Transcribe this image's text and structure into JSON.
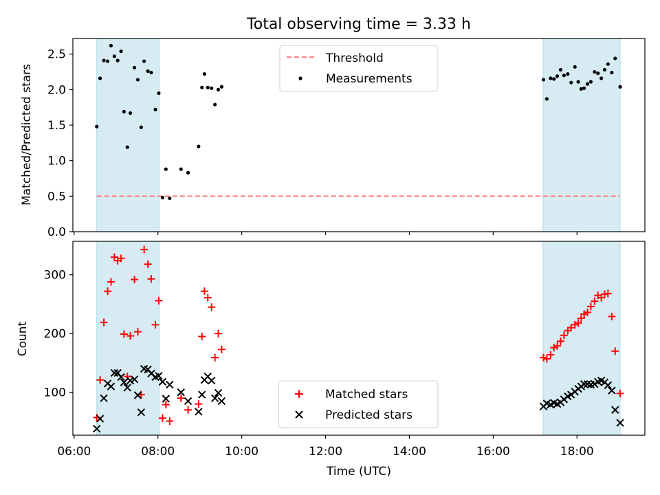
{
  "figure": {
    "title": "Total observing time = 3.33 h",
    "xlabel": "Time (UTC)",
    "xticks": [
      "06:00",
      "08:00",
      "10:00",
      "12:00",
      "14:00",
      "16:00",
      "18:00"
    ],
    "colors": {
      "shade": "#add8e6",
      "threshold": "#ff7f7f",
      "measurement": "#000000",
      "matched": "#ff0000",
      "predicted": "#000000"
    }
  },
  "chart_data": [
    {
      "type": "scatter",
      "panel": "top",
      "ylabel": "Matched/Predicted stars",
      "xlim": [
        5.97,
        19.62
      ],
      "ylim": [
        0,
        2.72
      ],
      "yticks": [
        "0.0",
        "0.5",
        "1.0",
        "1.5",
        "2.0",
        "2.5"
      ],
      "shaded_intervals": [
        [
          6.54,
          8.03
        ],
        [
          17.19,
          19.03
        ]
      ],
      "threshold": {
        "name": "Threshold",
        "value": 0.5,
        "x_range": [
          6.54,
          19.03
        ],
        "style": "dashed"
      },
      "legend": {
        "position": "top-center",
        "entries": [
          "Threshold",
          "Measurements"
        ]
      },
      "series": [
        {
          "name": "Measurements",
          "points": [
            [
              6.54,
              1.48
            ],
            [
              6.62,
              2.16
            ],
            [
              6.71,
              2.41
            ],
            [
              6.8,
              2.4
            ],
            [
              6.88,
              2.62
            ],
            [
              6.96,
              2.47
            ],
            [
              7.04,
              2.41
            ],
            [
              7.12,
              2.54
            ],
            [
              7.19,
              1.69
            ],
            [
              7.27,
              1.19
            ],
            [
              7.34,
              1.67
            ],
            [
              7.44,
              2.31
            ],
            [
              7.52,
              2.14
            ],
            [
              7.6,
              1.47
            ],
            [
              7.67,
              2.4
            ],
            [
              7.76,
              2.26
            ],
            [
              7.84,
              2.24
            ],
            [
              7.94,
              1.72
            ],
            [
              8.02,
              1.95
            ],
            [
              8.11,
              0.48
            ],
            [
              8.19,
              0.88
            ],
            [
              8.28,
              0.47
            ],
            [
              8.55,
              0.88
            ],
            [
              8.72,
              0.83
            ],
            [
              8.97,
              1.2
            ],
            [
              9.05,
              2.03
            ],
            [
              9.11,
              2.22
            ],
            [
              9.19,
              2.03
            ],
            [
              9.28,
              2.02
            ],
            [
              9.36,
              1.79
            ],
            [
              9.44,
              2.0
            ],
            [
              9.52,
              2.04
            ],
            [
              17.2,
              2.14
            ],
            [
              17.28,
              1.87
            ],
            [
              17.37,
              2.16
            ],
            [
              17.45,
              2.15
            ],
            [
              17.53,
              2.19
            ],
            [
              17.61,
              2.28
            ],
            [
              17.69,
              2.2
            ],
            [
              17.78,
              2.22
            ],
            [
              17.86,
              2.1
            ],
            [
              17.95,
              2.32
            ],
            [
              18.03,
              2.11
            ],
            [
              18.1,
              2.01
            ],
            [
              18.17,
              2.02
            ],
            [
              18.25,
              2.08
            ],
            [
              18.33,
              2.11
            ],
            [
              18.42,
              2.25
            ],
            [
              18.5,
              2.23
            ],
            [
              18.58,
              2.16
            ],
            [
              18.66,
              2.28
            ],
            [
              18.74,
              2.36
            ],
            [
              18.83,
              2.24
            ],
            [
              18.91,
              2.44
            ],
            [
              19.03,
              2.04
            ]
          ]
        }
      ]
    },
    {
      "type": "scatter",
      "panel": "bottom",
      "ylabel": "Count",
      "xlim": [
        5.97,
        19.62
      ],
      "ylim": [
        27,
        357
      ],
      "yticks": [
        "100",
        "200",
        "300"
      ],
      "shaded_intervals": [
        [
          6.54,
          8.03
        ],
        [
          17.19,
          19.03
        ]
      ],
      "legend": {
        "position": "bottom-center",
        "entries": [
          "Matched stars",
          "Predicted stars"
        ]
      },
      "series": [
        {
          "name": "Matched stars",
          "marker": "plus",
          "points": [
            [
              6.54,
              57
            ],
            [
              6.62,
              121
            ],
            [
              6.71,
              219
            ],
            [
              6.8,
              272
            ],
            [
              6.88,
              288
            ],
            [
              6.96,
              330
            ],
            [
              7.04,
              324
            ],
            [
              7.12,
              328
            ],
            [
              7.19,
              199
            ],
            [
              7.27,
              127
            ],
            [
              7.34,
              196
            ],
            [
              7.44,
              292
            ],
            [
              7.52,
              203
            ],
            [
              7.6,
              96
            ],
            [
              7.67,
              343
            ],
            [
              7.76,
              318
            ],
            [
              7.84,
              293
            ],
            [
              7.94,
              215
            ],
            [
              8.02,
              256
            ],
            [
              8.11,
              56
            ],
            [
              8.19,
              79
            ],
            [
              8.28,
              51
            ],
            [
              8.55,
              90
            ],
            [
              8.72,
              70
            ],
            [
              8.97,
              80
            ],
            [
              9.05,
              195
            ],
            [
              9.11,
              272
            ],
            [
              9.19,
              261
            ],
            [
              9.28,
              245
            ],
            [
              9.36,
              159
            ],
            [
              9.44,
              200
            ],
            [
              9.52,
              173
            ],
            [
              17.2,
              159
            ],
            [
              17.28,
              157
            ],
            [
              17.37,
              164
            ],
            [
              17.45,
              176
            ],
            [
              17.53,
              179
            ],
            [
              17.61,
              187
            ],
            [
              17.69,
              197
            ],
            [
              17.78,
              205
            ],
            [
              17.86,
              210
            ],
            [
              17.95,
              215
            ],
            [
              18.03,
              218
            ],
            [
              18.1,
              226
            ],
            [
              18.17,
              233
            ],
            [
              18.25,
              236
            ],
            [
              18.33,
              246
            ],
            [
              18.42,
              255
            ],
            [
              18.5,
              265
            ],
            [
              18.58,
              261
            ],
            [
              18.66,
              267
            ],
            [
              18.74,
              268
            ],
            [
              18.83,
              229
            ],
            [
              18.91,
              170
            ],
            [
              19.03,
              98
            ]
          ]
        },
        {
          "name": "Predicted stars",
          "marker": "x",
          "points": [
            [
              6.54,
              38
            ],
            [
              6.62,
              55
            ],
            [
              6.71,
              90
            ],
            [
              6.8,
              115
            ],
            [
              6.88,
              110
            ],
            [
              6.96,
              133
            ],
            [
              7.04,
              133
            ],
            [
              7.12,
              126
            ],
            [
              7.19,
              117
            ],
            [
              7.27,
              108
            ],
            [
              7.34,
              120
            ],
            [
              7.44,
              122
            ],
            [
              7.52,
              95
            ],
            [
              7.6,
              66
            ],
            [
              7.67,
              140
            ],
            [
              7.76,
              139
            ],
            [
              7.84,
              132
            ],
            [
              7.94,
              126
            ],
            [
              8.02,
              128
            ],
            [
              8.11,
              118
            ],
            [
              8.19,
              89
            ],
            [
              8.28,
              113
            ],
            [
              8.55,
              100
            ],
            [
              8.72,
              85
            ],
            [
              8.97,
              67
            ],
            [
              9.05,
              96
            ],
            [
              9.11,
              121
            ],
            [
              9.19,
              127
            ],
            [
              9.28,
              120
            ],
            [
              9.36,
              90
            ],
            [
              9.44,
              99
            ],
            [
              9.52,
              85
            ],
            [
              17.2,
              76
            ],
            [
              17.28,
              81
            ],
            [
              17.37,
              79
            ],
            [
              17.45,
              82
            ],
            [
              17.53,
              80
            ],
            [
              17.61,
              83
            ],
            [
              17.69,
              88
            ],
            [
              17.78,
              93
            ],
            [
              17.86,
              96
            ],
            [
              17.95,
              101
            ],
            [
              18.03,
              106
            ],
            [
              18.1,
              110
            ],
            [
              18.17,
              114
            ],
            [
              18.25,
              114
            ],
            [
              18.33,
              113
            ],
            [
              18.42,
              114
            ],
            [
              18.5,
              118
            ],
            [
              18.58,
              120
            ],
            [
              18.66,
              117
            ],
            [
              18.74,
              112
            ],
            [
              18.83,
              103
            ],
            [
              18.91,
              70
            ],
            [
              19.03,
              48
            ]
          ]
        }
      ]
    }
  ]
}
